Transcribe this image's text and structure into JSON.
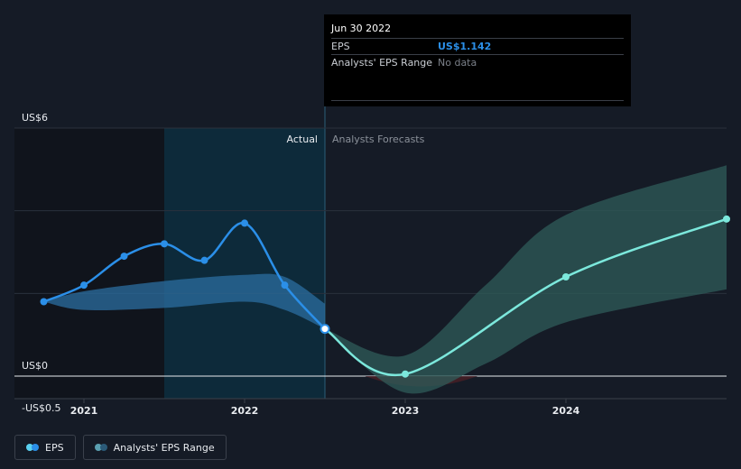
{
  "tooltip": {
    "date": "Jun 30 2022",
    "eps_label": "EPS",
    "eps_value": "US$1.142",
    "range_label": "Analysts' EPS Range",
    "range_value": "No data"
  },
  "legend": [
    {
      "label": "EPS",
      "colors": [
        "#5ad1f0",
        "#2b8fe8"
      ]
    },
    {
      "label": "Analysts' EPS Range",
      "colors": [
        "#5a9fb0",
        "#2b5a78"
      ]
    }
  ],
  "colors": {
    "eps_actual": "#2b8fe8",
    "eps_forecast": "#7ce8dc",
    "range_actual": "#2b6ea0",
    "range_forecast": "#2f5c5a",
    "negative_range": "#4a1f25"
  },
  "chart_data": {
    "type": "line",
    "ylim": [
      -0.5,
      6
    ],
    "y_ticks": [
      {
        "value": 6,
        "label": "US$6"
      },
      {
        "value": 0,
        "label": "US$0"
      },
      {
        "value": -0.5,
        "label": "-US$0.5"
      }
    ],
    "x_ticks": [
      {
        "value": 2021,
        "label": "2021"
      },
      {
        "value": 2022,
        "label": "2022"
      },
      {
        "value": 2023,
        "label": "2023"
      },
      {
        "value": 2024,
        "label": "2024"
      }
    ],
    "xlim": [
      2020.5,
      2025.0
    ],
    "divider_x": 2022.5,
    "actual_label": "Actual",
    "forecast_label": "Analysts Forecasts",
    "actual_shade_start": 2021.5,
    "series": [
      {
        "name": "EPS",
        "segment": "actual",
        "x": [
          2020.75,
          2021.0,
          2021.25,
          2021.5,
          2021.75,
          2022.0,
          2022.25,
          2022.5
        ],
        "y": [
          1.8,
          2.2,
          2.9,
          3.2,
          2.8,
          3.7,
          2.2,
          1.142
        ]
      },
      {
        "name": "EPS",
        "segment": "forecast",
        "x": [
          2022.5,
          2023.0,
          2024.0,
          2025.0
        ],
        "y": [
          1.142,
          0.05,
          2.4,
          3.8
        ]
      }
    ],
    "range_actual": {
      "x": [
        2020.75,
        2021.0,
        2021.5,
        2022.0,
        2022.25,
        2022.5
      ],
      "high": [
        1.8,
        2.05,
        2.3,
        2.45,
        2.4,
        1.75
      ],
      "low": [
        1.8,
        1.6,
        1.65,
        1.8,
        1.6,
        1.142
      ]
    },
    "range_forecast": {
      "x": [
        2022.5,
        2023.0,
        2023.5,
        2024.0,
        2025.0
      ],
      "high": [
        1.142,
        0.5,
        2.2,
        3.9,
        5.1
      ],
      "low": [
        1.142,
        -0.4,
        0.3,
        1.3,
        2.1
      ]
    }
  }
}
